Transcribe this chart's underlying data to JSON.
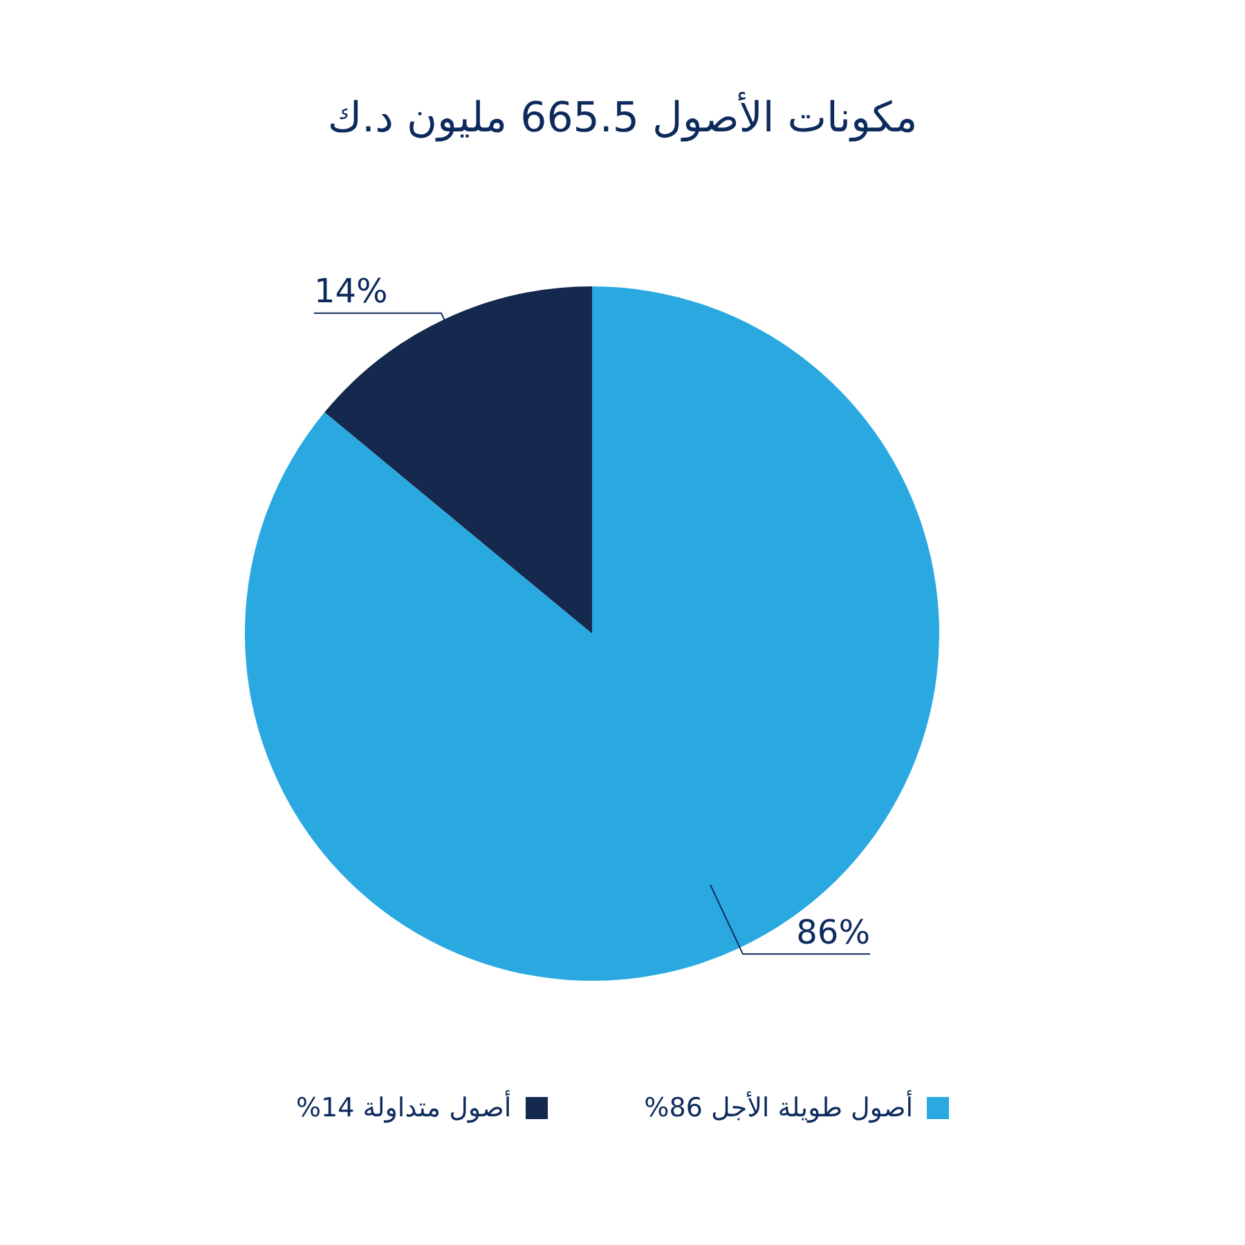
{
  "chart_data": {
    "type": "pie",
    "title": "مكونات الأصول 665.5 مليون د.ك",
    "categories": [
      "أصول طويلة الأجل 86%",
      "أصول متداولة 14%"
    ],
    "values": [
      86,
      14
    ],
    "colors": [
      "#2aa9e1",
      "#15284d"
    ],
    "value_labels": [
      "86%",
      "14%"
    ],
    "legend": "bottom"
  }
}
